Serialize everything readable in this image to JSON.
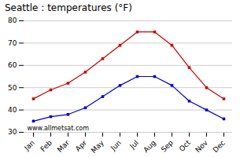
{
  "chart_data": {
    "type": "line",
    "title": "Seattle : temperatures (°F)",
    "categories": [
      "Jan",
      "Feb",
      "Mar",
      "Apr",
      "May",
      "Jun",
      "Jul",
      "Aug",
      "Sep",
      "Oct",
      "Nov",
      "Dec"
    ],
    "series": [
      {
        "color": "#cc0000",
        "marker": "square",
        "values": [
          45,
          49,
          52,
          57,
          63,
          69,
          75,
          75,
          69,
          59,
          50,
          45
        ]
      },
      {
        "color": "#0000cc",
        "marker": "square",
        "values": [
          35,
          37,
          38,
          41,
          46,
          51,
          55,
          55,
          51,
          44,
          40,
          36
        ]
      }
    ],
    "ylim": [
      30,
      80
    ],
    "yticks": [
      30,
      40,
      50,
      60,
      70,
      80
    ],
    "grid": true,
    "annotations": [
      "www.allmetsat.com"
    ]
  }
}
